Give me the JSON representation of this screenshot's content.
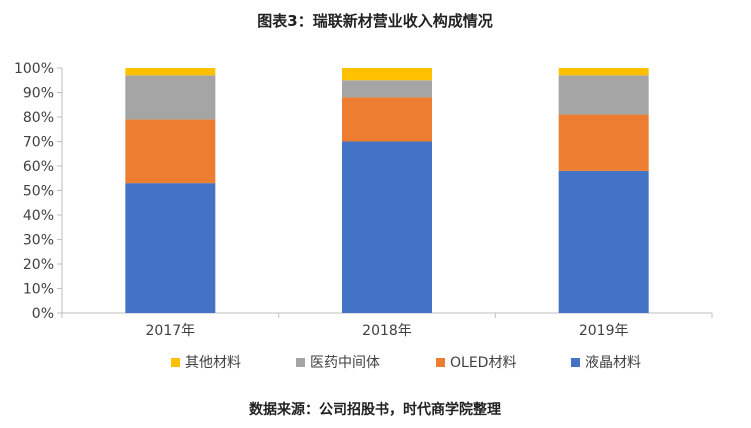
{
  "title": "图表3：瑞联新材营业收入构成情况",
  "source_note": "数据来源：公司招股书，时代商学院整理",
  "colors": {
    "液晶材料": "#4472C4",
    "OLED材料": "#ED7D31",
    "医药中间体": "#A5A5A5",
    "其他材料": "#FFC000",
    "axis": "#bfbfbf",
    "text": "#404040"
  },
  "chart_data": {
    "type": "bar",
    "stacked": true,
    "percent": true,
    "categories": [
      "2017年",
      "2018年",
      "2019年"
    ],
    "series": [
      {
        "name": "液晶材料",
        "values": [
          53,
          70,
          58
        ]
      },
      {
        "name": "OLED材料",
        "values": [
          26,
          18,
          23
        ]
      },
      {
        "name": "医药中间体",
        "values": [
          18,
          7,
          16
        ]
      },
      {
        "name": "其他材料",
        "values": [
          3,
          5,
          3
        ]
      }
    ],
    "ylim": [
      0,
      100
    ],
    "yticks": [
      "0%",
      "10%",
      "20%",
      "30%",
      "40%",
      "50%",
      "60%",
      "70%",
      "80%",
      "90%",
      "100%"
    ],
    "grid": false,
    "legend_position": "bottom",
    "legend_order": [
      "其他材料",
      "医药中间体",
      "OLED材料",
      "液晶材料"
    ]
  }
}
